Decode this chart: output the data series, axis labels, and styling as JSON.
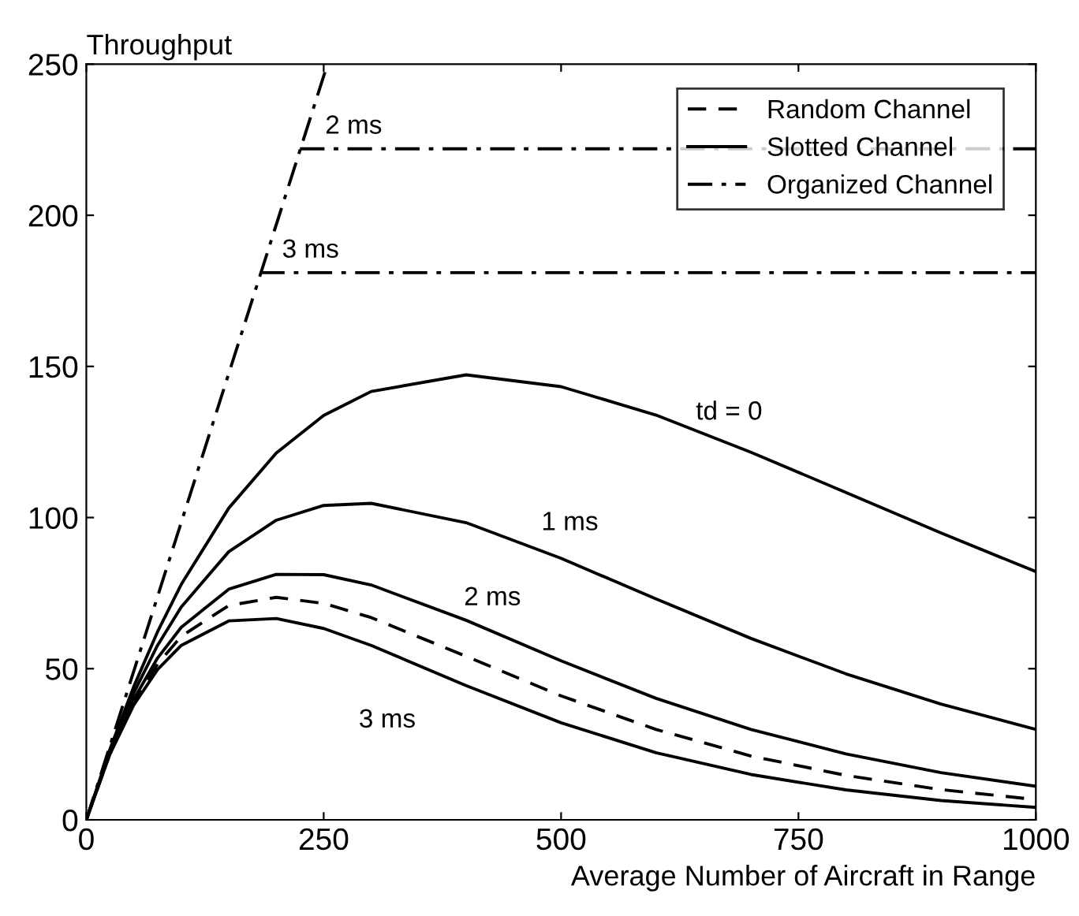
{
  "chart_data": {
    "type": "line",
    "xlabel": "Average Number of Aircraft in Range",
    "ylabel": "Throughput",
    "xlim": [
      0,
      1000
    ],
    "ylim": [
      0,
      250
    ],
    "xticks": [
      0,
      250,
      500,
      750,
      1000
    ],
    "yticks": [
      0,
      50,
      100,
      150,
      200,
      250
    ],
    "grid": false,
    "legend": "top right",
    "marker": "none",
    "x": [
      0,
      25,
      50,
      75,
      100,
      150,
      200,
      250,
      300,
      400,
      500,
      600,
      700,
      800,
      900,
      1000
    ],
    "series": [
      {
        "name": "Random Channel",
        "color": "#000000",
        "line_style": "dashed",
        "values": [
          0,
          22.1,
          38.9,
          51.5,
          60.7,
          70.9,
          73.6,
          71.6,
          66.9,
          54.1,
          41.0,
          29.9,
          21.1,
          14.7,
          10.0,
          6.7
        ]
      },
      {
        "name": "Slotted Channel",
        "color": "#000000",
        "line_style": "solid",
        "values": [
          0,
          23.5,
          44.1,
          62.2,
          77.9,
          103.1,
          121.3,
          133.8,
          141.7,
          147.2,
          143.3,
          133.9,
          121.6,
          108.3,
          94.9,
          82.1
        ]
      },
      {
        "color": "#000000",
        "line_style": "solid",
        "values": [
          0,
          22.9,
          42.0,
          57.7,
          70.4,
          88.7,
          99.1,
          104.0,
          104.7,
          98.3,
          86.5,
          73.1,
          60.0,
          48.3,
          38.3,
          29.9
        ]
      },
      {
        "color": "#000000",
        "line_style": "solid",
        "values": [
          0,
          22.3,
          39.9,
          53.5,
          63.7,
          76.3,
          81.2,
          81.1,
          77.7,
          66.0,
          52.6,
          40.2,
          29.9,
          21.8,
          15.6,
          11.1
        ]
      },
      {
        "color": "#000000",
        "line_style": "solid",
        "values": [
          0,
          21.8,
          38.0,
          49.7,
          57.7,
          65.8,
          66.6,
          63.3,
          57.7,
          44.4,
          32.1,
          22.2,
          15.0,
          9.9,
          6.4,
          4.1
        ]
      },
      {
        "name": "Organized Channel",
        "color": "#000000",
        "line_style": "dashdot",
        "x": [
          0,
          254
        ],
        "values": [
          0,
          250
        ]
      },
      {
        "color": "#000000",
        "line_style": "dashdot",
        "x": [
          225,
          1000
        ],
        "values": [
          222,
          222
        ]
      },
      {
        "color": "#000000",
        "line_style": "dashdot",
        "x": [
          183,
          1000
        ],
        "values": [
          181,
          181
        ]
      }
    ],
    "annotations": [
      {
        "text": "2 ms",
        "x": 300,
        "y": 222
      },
      {
        "text": "3 ms",
        "x": 250,
        "y": 181
      },
      {
        "text": "td = 0",
        "x": 700,
        "y": 121.6
      },
      {
        "text": "1 ms",
        "x": 500,
        "y": 86.5
      },
      {
        "text": "2 ms",
        "x": 400,
        "y": 66.0
      },
      {
        "text": "3 ms",
        "x": 400,
        "y": 44.4
      }
    ]
  }
}
